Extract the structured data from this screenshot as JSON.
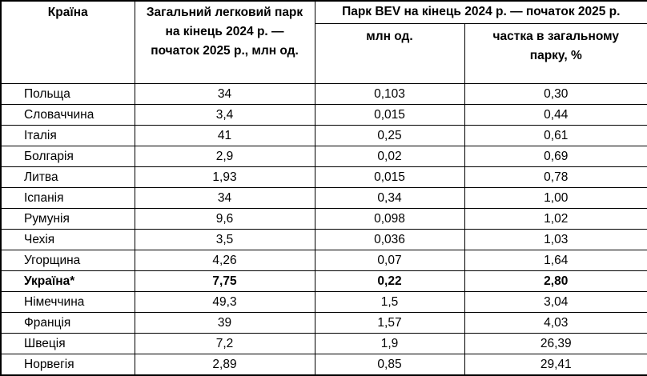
{
  "table": {
    "colors": {
      "border": "#000000",
      "text": "#000000",
      "background": "#ffffff"
    },
    "header": {
      "country": "Країна",
      "total_fleet": "Загальний легковий парк на кінець 2024 р. — початок 2025 р., млн од.",
      "bev_group": "Парк BEV на кінець 2024 р. — початок 2025 р.",
      "bev_mln": "млн од.",
      "bev_share": "частка в загальному парку, %"
    },
    "rows": [
      {
        "country": "Польща",
        "total": "34",
        "bev": "0,103",
        "share": "0,30",
        "bold": false
      },
      {
        "country": "Словаччина",
        "total": "3,4",
        "bev": "0,015",
        "share": "0,44",
        "bold": false
      },
      {
        "country": "Італія",
        "total": "41",
        "bev": "0,25",
        "share": "0,61",
        "bold": false
      },
      {
        "country": "Болгарія",
        "total": "2,9",
        "bev": "0,02",
        "share": "0,69",
        "bold": false
      },
      {
        "country": "Литва",
        "total": "1,93",
        "bev": "0,015",
        "share": "0,78",
        "bold": false
      },
      {
        "country": "Іспанія",
        "total": "34",
        "bev": "0,34",
        "share": "1,00",
        "bold": false
      },
      {
        "country": "Румунія",
        "total": "9,6",
        "bev": "0,098",
        "share": "1,02",
        "bold": false
      },
      {
        "country": "Чехія",
        "total": "3,5",
        "bev": "0,036",
        "share": "1,03",
        "bold": false
      },
      {
        "country": "Угорщина",
        "total": "4,26",
        "bev": "0,07",
        "share": "1,64",
        "bold": false
      },
      {
        "country": "Україна*",
        "total": "7,75",
        "bev": "0,22",
        "share": "2,80",
        "bold": true
      },
      {
        "country": "Німеччина",
        "total": "49,3",
        "bev": "1,5",
        "share": "3,04",
        "bold": false
      },
      {
        "country": "Франція",
        "total": "39",
        "bev": "1,57",
        "share": "4,03",
        "bold": false
      },
      {
        "country": "Швеція",
        "total": "7,2",
        "bev": "1,9",
        "share": "26,39",
        "bold": false
      },
      {
        "country": "Норвегія",
        "total": "2,89",
        "bev": "0,85",
        "share": "29,41",
        "bold": false
      }
    ]
  }
}
